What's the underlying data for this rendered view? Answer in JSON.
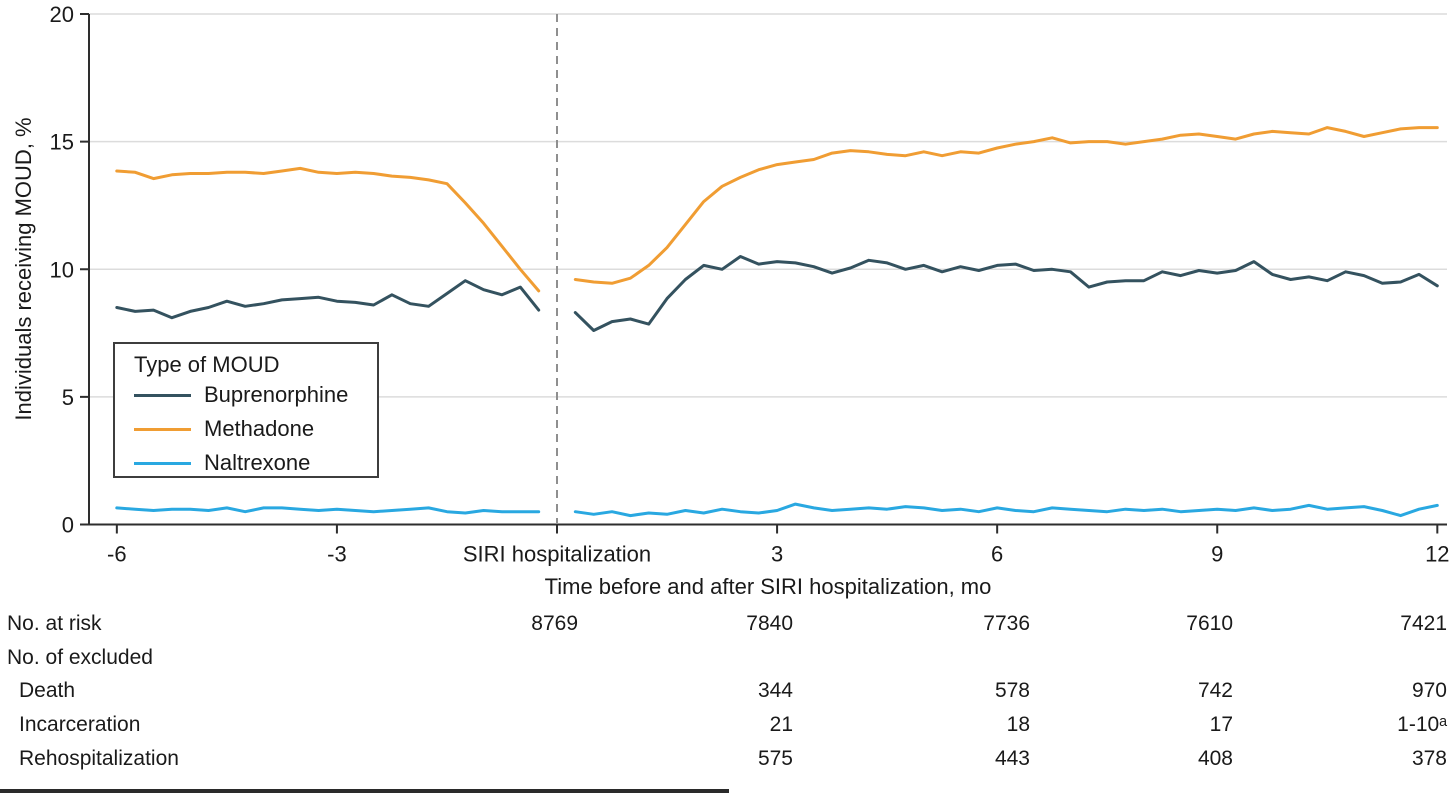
{
  "chart_data": {
    "type": "line",
    "title": "",
    "xlabel": "Time before and after SIRI hospitalization, mo",
    "ylabel": "Individuals receiving MOUD, %",
    "legend_title": "Type of MOUD",
    "legend_position": "left-middle",
    "ylim": [
      0,
      20
    ],
    "xlim": [
      -6,
      12
    ],
    "grid": "horizontal",
    "reference_line_x_label": "SIRI hospitalization",
    "yticks": [
      {
        "value": 0,
        "label": "0"
      },
      {
        "value": 5,
        "label": "5"
      },
      {
        "value": 10,
        "label": "10"
      },
      {
        "value": 15,
        "label": "15"
      },
      {
        "value": 20,
        "label": "20"
      }
    ],
    "xticks": [
      {
        "x": -6,
        "label": "-6"
      },
      {
        "x": -3,
        "label": "-3"
      },
      {
        "x": 0,
        "label": "SIRI hospitalization"
      },
      {
        "x": 3,
        "label": "3"
      },
      {
        "x": 6,
        "label": "6"
      },
      {
        "x": 9,
        "label": "9"
      },
      {
        "x": 12,
        "label": "12"
      }
    ],
    "colors": {
      "axis": "#2e2e2e",
      "grid": "#dcdcdc",
      "text": "#1a1a1a",
      "reference": "#8f8f8f"
    },
    "x_pre": [
      -6,
      -5.75,
      -5.5,
      -5.25,
      -5,
      -4.75,
      -4.5,
      -4.25,
      -4,
      -3.75,
      -3.5,
      -3.25,
      -3,
      -2.75,
      -2.5,
      -2.25,
      -2,
      -1.75,
      -1.5,
      -1.25,
      -1,
      -0.75,
      -0.5,
      -0.25
    ],
    "x_post": [
      0.25,
      0.5,
      0.75,
      1,
      1.25,
      1.5,
      1.75,
      2,
      2.25,
      2.5,
      2.75,
      3,
      3.25,
      3.5,
      3.75,
      4,
      4.25,
      4.5,
      4.75,
      5,
      5.25,
      5.5,
      5.75,
      6,
      6.25,
      6.5,
      6.75,
      7,
      7.25,
      7.5,
      7.75,
      8,
      8.25,
      8.5,
      8.75,
      9,
      9.25,
      9.5,
      9.75,
      10,
      10.25,
      10.5,
      10.75,
      11,
      11.25,
      11.5,
      11.75,
      12
    ],
    "series": [
      {
        "name": "Buprenorphine",
        "color": "#34525F",
        "values_pre": [
          8.5,
          8.35,
          8.4,
          8.1,
          8.35,
          8.5,
          8.75,
          8.55,
          8.65,
          8.8,
          8.85,
          8.9,
          8.75,
          8.7,
          8.6,
          9.0,
          8.65,
          8.55,
          9.05,
          9.55,
          9.2,
          9.0,
          9.3,
          8.4
        ],
        "values_post": [
          8.3,
          7.6,
          7.95,
          8.05,
          7.85,
          8.85,
          9.6,
          10.15,
          10.0,
          10.5,
          10.2,
          10.3,
          10.25,
          10.1,
          9.85,
          10.05,
          10.35,
          10.25,
          10.0,
          10.15,
          9.9,
          10.1,
          9.95,
          10.15,
          10.2,
          9.95,
          10.0,
          9.9,
          9.3,
          9.5,
          9.55,
          9.55,
          9.9,
          9.75,
          9.95,
          9.85,
          9.95,
          10.3,
          9.8,
          9.6,
          9.7,
          9.55,
          9.9,
          9.75,
          9.45,
          9.5,
          9.8,
          9.35
        ]
      },
      {
        "name": "Methadone",
        "color": "#F09D33",
        "values_pre": [
          13.85,
          13.8,
          13.55,
          13.7,
          13.75,
          13.75,
          13.8,
          13.8,
          13.75,
          13.85,
          13.95,
          13.8,
          13.75,
          13.8,
          13.75,
          13.65,
          13.6,
          13.5,
          13.35,
          12.6,
          11.8,
          10.9,
          10.0,
          9.15
        ],
        "values_post": [
          9.6,
          9.5,
          9.45,
          9.65,
          10.15,
          10.85,
          11.75,
          12.65,
          13.25,
          13.6,
          13.9,
          14.1,
          14.2,
          14.3,
          14.55,
          14.65,
          14.6,
          14.5,
          14.45,
          14.6,
          14.45,
          14.6,
          14.55,
          14.75,
          14.9,
          15.0,
          15.15,
          14.95,
          15.0,
          15.0,
          14.9,
          15.0,
          15.1,
          15.25,
          15.3,
          15.2,
          15.1,
          15.3,
          15.4,
          15.35,
          15.3,
          15.55,
          15.4,
          15.2,
          15.35,
          15.5,
          15.55,
          15.55
        ]
      },
      {
        "name": "Naltrexone",
        "color": "#29A8E1",
        "values_pre": [
          0.65,
          0.6,
          0.55,
          0.6,
          0.6,
          0.55,
          0.65,
          0.5,
          0.65,
          0.65,
          0.6,
          0.55,
          0.6,
          0.55,
          0.5,
          0.55,
          0.6,
          0.65,
          0.5,
          0.45,
          0.55,
          0.5,
          0.5,
          0.5
        ],
        "values_post": [
          0.5,
          0.4,
          0.5,
          0.35,
          0.45,
          0.4,
          0.55,
          0.45,
          0.6,
          0.5,
          0.45,
          0.55,
          0.8,
          0.65,
          0.55,
          0.6,
          0.65,
          0.6,
          0.7,
          0.65,
          0.55,
          0.6,
          0.5,
          0.65,
          0.55,
          0.5,
          0.65,
          0.6,
          0.55,
          0.5,
          0.6,
          0.55,
          0.6,
          0.5,
          0.55,
          0.6,
          0.55,
          0.65,
          0.55,
          0.6,
          0.75,
          0.6,
          0.65,
          0.7,
          0.55,
          0.35,
          0.6,
          0.75
        ]
      }
    ]
  },
  "risk_table": {
    "rows": [
      {
        "label": "No. at risk",
        "indent": false,
        "values": [
          "8769",
          "7840",
          "7736",
          "7610",
          "7421"
        ]
      },
      {
        "label": "No. of excluded",
        "indent": false,
        "values": [
          "",
          "",
          "",
          "",
          ""
        ]
      },
      {
        "label": "Death",
        "indent": true,
        "values": [
          "",
          "344",
          "578",
          "742",
          "970"
        ]
      },
      {
        "label": "Incarceration",
        "indent": true,
        "values": [
          "",
          "21",
          "18",
          "17",
          "1-10ᵃ"
        ]
      },
      {
        "label": "Rehospitalization",
        "indent": true,
        "values": [
          "",
          "575",
          "443",
          "408",
          "378"
        ]
      }
    ]
  }
}
